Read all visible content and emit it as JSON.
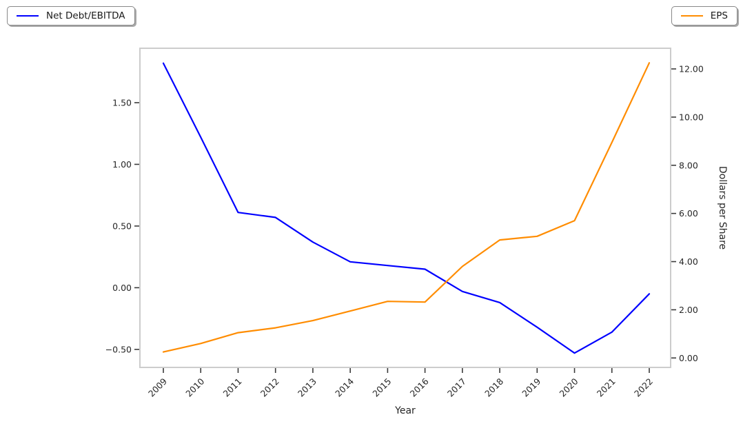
{
  "chart_data": {
    "type": "line",
    "title": "",
    "x": [
      2009,
      2010,
      2011,
      2012,
      2013,
      2014,
      2015,
      2016,
      2017,
      2018,
      2019,
      2020,
      2021,
      2022
    ],
    "xlabel": "Year",
    "series": [
      {
        "name": "Net Debt/EBITDA",
        "axis": "left",
        "color": "#0000ff",
        "values": [
          1.82,
          1.22,
          0.61,
          0.57,
          0.37,
          0.21,
          0.18,
          0.15,
          -0.03,
          -0.12,
          -0.32,
          -0.53,
          -0.36,
          -0.05
        ]
      },
      {
        "name": "EPS",
        "axis": "right",
        "color": "#ff8c00",
        "values": [
          0.25,
          0.6,
          1.05,
          1.25,
          1.55,
          1.95,
          2.35,
          2.32,
          3.8,
          4.9,
          5.05,
          5.7,
          8.95,
          12.25
        ]
      }
    ],
    "left_axis": {
      "label": "",
      "ticks": [
        1.5,
        1.0,
        0.5,
        0.0,
        -0.5
      ],
      "tick_labels": [
        "1.50",
        "1.00",
        "0.50",
        "0.00",
        "−0.50"
      ],
      "range": [
        -0.646,
        1.941
      ]
    },
    "right_axis": {
      "label": "Dollars per Share",
      "ticks": [
        12,
        10,
        8,
        6,
        4,
        2,
        0
      ],
      "tick_labels": [
        "12.00",
        "10.00",
        "8.00",
        "6.00",
        "4.00",
        "2.00",
        "0.00"
      ],
      "range": [
        -0.392,
        12.858
      ]
    },
    "grid": false,
    "legend_position": "outside-top-corners"
  },
  "colors": {
    "spine": "#cccccc",
    "tick": "#3a3a3a",
    "text": "#262626",
    "background": "#ffffff"
  }
}
